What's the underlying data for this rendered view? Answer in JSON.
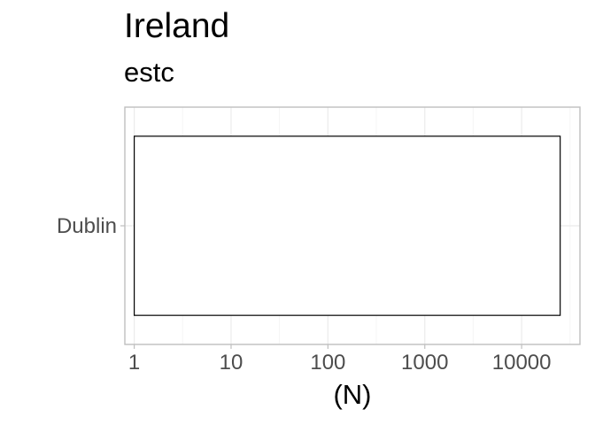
{
  "chart_data": {
    "type": "bar",
    "title": "Ireland",
    "subtitle": "estc",
    "xlabel": "(N)",
    "ylabel": "",
    "x_scale": "log10",
    "xlim": [
      0.8,
      40000
    ],
    "x_ticks": [
      1,
      10,
      100,
      1000,
      10000
    ],
    "x_tick_labels": [
      "1",
      "10",
      "100",
      "1000",
      "10000"
    ],
    "categories": [
      "Dublin"
    ],
    "values": [
      25000
    ],
    "grid": true,
    "legend": "none",
    "colors": {
      "bar_fill": "#ffffff",
      "bar_stroke": "#000000",
      "grid_major": "#ebebeb",
      "grid_minor": "#f5f5f5",
      "panel_border": "#bfbfbf",
      "tick_text": "#4d4d4d"
    }
  }
}
